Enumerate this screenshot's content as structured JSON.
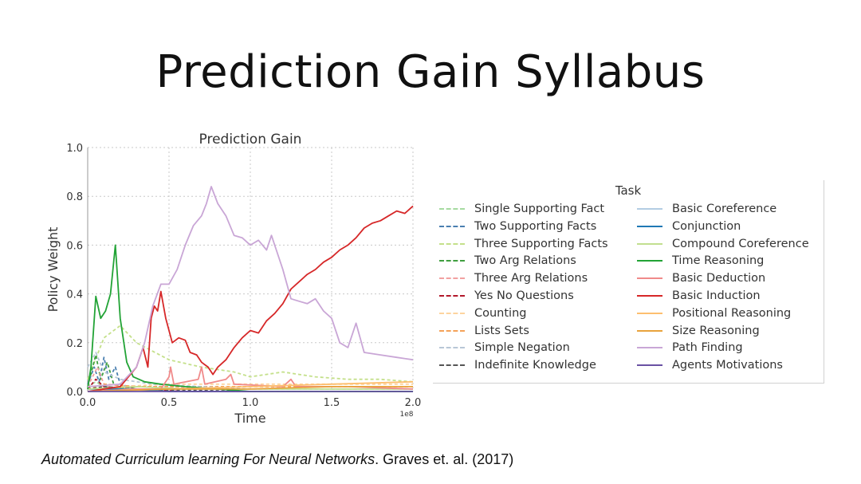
{
  "slide": {
    "title": "Prediction Gain Syllabus",
    "citation_title": "Automated Curriculum learning For Neural Networks",
    "citation_rest": ". Graves et. al. (2017)"
  },
  "chart_data": {
    "type": "line",
    "title": "Prediction Gain",
    "xlabel": "Time",
    "ylabel": "Policy Weight",
    "x_scale_label": "1e8",
    "xlim": [
      0,
      2.0
    ],
    "ylim": [
      0,
      1.0
    ],
    "xticks": [
      "0.0",
      "0.5",
      "1.0",
      "1.5",
      "2.0"
    ],
    "yticks": [
      "0.0",
      "0.2",
      "0.4",
      "0.6",
      "0.8",
      "1.0"
    ],
    "grid": true,
    "legend_title": "Task",
    "legend_placement": "right, outside",
    "series": [
      {
        "name": "Single Supporting Fact",
        "color": "#a6dba0",
        "dash": true,
        "points": [
          [
            0,
            0.02
          ],
          [
            0.05,
            0.04
          ],
          [
            0.1,
            0.02
          ],
          [
            0.2,
            0.01
          ],
          [
            0.4,
            0.01
          ],
          [
            0.6,
            0.01
          ],
          [
            1.0,
            0.01
          ],
          [
            1.5,
            0.01
          ],
          [
            2.0,
            0.01
          ]
        ]
      },
      {
        "name": "Two Supporting Facts",
        "color": "#4a7fb0",
        "dash": true,
        "points": [
          [
            0,
            0.03
          ],
          [
            0.04,
            0.1
          ],
          [
            0.07,
            0.04
          ],
          [
            0.1,
            0.14
          ],
          [
            0.13,
            0.05
          ],
          [
            0.17,
            0.1
          ],
          [
            0.2,
            0.03
          ],
          [
            0.3,
            0.01
          ],
          [
            0.5,
            0.0
          ],
          [
            1.0,
            0.0
          ],
          [
            2.0,
            0.0
          ]
        ]
      },
      {
        "name": "Three Supporting Facts",
        "color": "#c4e08a",
        "dash": true,
        "points": [
          [
            0,
            0.05
          ],
          [
            0.1,
            0.22
          ],
          [
            0.2,
            0.27
          ],
          [
            0.3,
            0.2
          ],
          [
            0.5,
            0.13
          ],
          [
            0.7,
            0.1
          ],
          [
            0.9,
            0.08
          ],
          [
            1.0,
            0.06
          ],
          [
            1.2,
            0.08
          ],
          [
            1.3,
            0.07
          ],
          [
            1.4,
            0.06
          ],
          [
            1.6,
            0.05
          ],
          [
            1.8,
            0.05
          ],
          [
            2.0,
            0.04
          ]
        ]
      },
      {
        "name": "Two Arg Relations",
        "color": "#3f9e3f",
        "dash": true,
        "points": [
          [
            0,
            0.02
          ],
          [
            0.05,
            0.15
          ],
          [
            0.08,
            0.05
          ],
          [
            0.12,
            0.12
          ],
          [
            0.16,
            0.03
          ],
          [
            0.3,
            0.01
          ],
          [
            0.6,
            0.0
          ],
          [
            1.0,
            0.0
          ],
          [
            2.0,
            0.0
          ]
        ]
      },
      {
        "name": "Three Arg Relations",
        "color": "#f2a1a1",
        "dash": true,
        "points": [
          [
            0,
            0.02
          ],
          [
            0.06,
            0.1
          ],
          [
            0.1,
            0.03
          ],
          [
            0.3,
            0.02
          ],
          [
            0.5,
            0.02
          ],
          [
            1.0,
            0.01
          ],
          [
            1.5,
            0.01
          ],
          [
            2.0,
            0.01
          ]
        ]
      },
      {
        "name": "Yes No Questions",
        "color": "#b2182b",
        "dash": true,
        "points": [
          [
            0,
            0.01
          ],
          [
            0.05,
            0.05
          ],
          [
            0.1,
            0.02
          ],
          [
            0.3,
            0.01
          ],
          [
            0.6,
            0.0
          ],
          [
            2.0,
            0.0
          ]
        ]
      },
      {
        "name": "Counting",
        "color": "#fdd49e",
        "dash": true,
        "points": [
          [
            0,
            0.01
          ],
          [
            0.2,
            0.02
          ],
          [
            0.5,
            0.03
          ],
          [
            1.0,
            0.03
          ],
          [
            1.5,
            0.03
          ],
          [
            2.0,
            0.03
          ]
        ]
      },
      {
        "name": "Lists Sets",
        "color": "#f4a259",
        "dash": true,
        "points": [
          [
            0,
            0.01
          ],
          [
            0.1,
            0.03
          ],
          [
            0.3,
            0.02
          ],
          [
            0.6,
            0.02
          ],
          [
            1.0,
            0.02
          ],
          [
            2.0,
            0.02
          ]
        ]
      },
      {
        "name": "Simple Negation",
        "color": "#b8c7d6",
        "dash": true,
        "points": [
          [
            0,
            0.1
          ],
          [
            0.05,
            0.16
          ],
          [
            0.1,
            0.08
          ],
          [
            0.2,
            0.05
          ],
          [
            0.4,
            0.03
          ],
          [
            0.7,
            0.02
          ],
          [
            1.0,
            0.01
          ],
          [
            2.0,
            0.01
          ]
        ]
      },
      {
        "name": "Indefinite Knowledge",
        "color": "#555555",
        "dash": true,
        "points": [
          [
            0,
            0.01
          ],
          [
            0.1,
            0.02
          ],
          [
            0.3,
            0.01
          ],
          [
            1.0,
            0.0
          ],
          [
            2.0,
            0.0
          ]
        ]
      },
      {
        "name": "Basic Coreference",
        "color": "#b3cde3",
        "dash": false,
        "points": [
          [
            0,
            0.01
          ],
          [
            0.5,
            0.01
          ],
          [
            1.0,
            0.01
          ],
          [
            2.0,
            0.01
          ]
        ]
      },
      {
        "name": "Conjunction",
        "color": "#1f78b4",
        "dash": false,
        "points": [
          [
            0,
            0.01
          ],
          [
            0.2,
            0.01
          ],
          [
            0.5,
            0.0
          ],
          [
            2.0,
            0.0
          ]
        ]
      },
      {
        "name": "Compound Coreference",
        "color": "#c2df8f",
        "dash": false,
        "points": [
          [
            0,
            0.01
          ],
          [
            0.3,
            0.02
          ],
          [
            0.6,
            0.01
          ],
          [
            1.0,
            0.01
          ],
          [
            2.0,
            0.01
          ]
        ]
      },
      {
        "name": "Time Reasoning",
        "color": "#22a336",
        "dash": false,
        "points": [
          [
            0,
            0.01
          ],
          [
            0.02,
            0.1
          ],
          [
            0.05,
            0.39
          ],
          [
            0.08,
            0.3
          ],
          [
            0.11,
            0.33
          ],
          [
            0.14,
            0.4
          ],
          [
            0.17,
            0.6
          ],
          [
            0.2,
            0.3
          ],
          [
            0.24,
            0.12
          ],
          [
            0.28,
            0.06
          ],
          [
            0.35,
            0.04
          ],
          [
            0.45,
            0.03
          ],
          [
            0.6,
            0.02
          ],
          [
            0.8,
            0.01
          ],
          [
            1.0,
            0.0
          ],
          [
            2.0,
            0.0
          ]
        ]
      },
      {
        "name": "Basic Deduction",
        "color": "#f08a8a",
        "dash": false,
        "points": [
          [
            0,
            0.0
          ],
          [
            0.3,
            0.01
          ],
          [
            0.45,
            0.01
          ],
          [
            0.5,
            0.06
          ],
          [
            0.51,
            0.1
          ],
          [
            0.53,
            0.03
          ],
          [
            0.68,
            0.05
          ],
          [
            0.7,
            0.1
          ],
          [
            0.72,
            0.03
          ],
          [
            0.85,
            0.05
          ],
          [
            0.88,
            0.07
          ],
          [
            0.9,
            0.03
          ],
          [
            1.2,
            0.02
          ],
          [
            1.25,
            0.05
          ],
          [
            1.28,
            0.02
          ],
          [
            1.6,
            0.02
          ],
          [
            2.0,
            0.01
          ]
        ]
      },
      {
        "name": "Basic Induction",
        "color": "#d62728",
        "dash": false,
        "points": [
          [
            0,
            0.0
          ],
          [
            0.2,
            0.02
          ],
          [
            0.3,
            0.1
          ],
          [
            0.34,
            0.18
          ],
          [
            0.37,
            0.1
          ],
          [
            0.39,
            0.3
          ],
          [
            0.41,
            0.35
          ],
          [
            0.43,
            0.33
          ],
          [
            0.45,
            0.41
          ],
          [
            0.48,
            0.3
          ],
          [
            0.52,
            0.2
          ],
          [
            0.56,
            0.22
          ],
          [
            0.6,
            0.21
          ],
          [
            0.63,
            0.16
          ],
          [
            0.67,
            0.15
          ],
          [
            0.7,
            0.12
          ],
          [
            0.74,
            0.1
          ],
          [
            0.77,
            0.07
          ],
          [
            0.8,
            0.1
          ],
          [
            0.85,
            0.13
          ],
          [
            0.9,
            0.18
          ],
          [
            0.95,
            0.22
          ],
          [
            1.0,
            0.25
          ],
          [
            1.05,
            0.24
          ],
          [
            1.1,
            0.29
          ],
          [
            1.15,
            0.32
          ],
          [
            1.2,
            0.36
          ],
          [
            1.25,
            0.42
          ],
          [
            1.3,
            0.45
          ],
          [
            1.35,
            0.48
          ],
          [
            1.4,
            0.5
          ],
          [
            1.45,
            0.53
          ],
          [
            1.5,
            0.55
          ],
          [
            1.55,
            0.58
          ],
          [
            1.6,
            0.6
          ],
          [
            1.65,
            0.63
          ],
          [
            1.7,
            0.67
          ],
          [
            1.75,
            0.69
          ],
          [
            1.8,
            0.7
          ],
          [
            1.85,
            0.72
          ],
          [
            1.9,
            0.74
          ],
          [
            1.95,
            0.73
          ],
          [
            2.0,
            0.76
          ]
        ]
      },
      {
        "name": "Positional Reasoning",
        "color": "#fdbf6f",
        "dash": false,
        "points": [
          [
            0,
            0.0
          ],
          [
            0.5,
            0.01
          ],
          [
            1.0,
            0.02
          ],
          [
            1.5,
            0.03
          ],
          [
            2.0,
            0.04
          ]
        ]
      },
      {
        "name": "Size Reasoning",
        "color": "#e8a33c",
        "dash": false,
        "points": [
          [
            0,
            0.0
          ],
          [
            0.5,
            0.01
          ],
          [
            1.0,
            0.01
          ],
          [
            1.5,
            0.02
          ],
          [
            2.0,
            0.02
          ]
        ]
      },
      {
        "name": "Path Finding",
        "color": "#c9a6d6",
        "dash": false,
        "points": [
          [
            0,
            0.02
          ],
          [
            0.2,
            0.03
          ],
          [
            0.3,
            0.1
          ],
          [
            0.35,
            0.2
          ],
          [
            0.4,
            0.35
          ],
          [
            0.45,
            0.44
          ],
          [
            0.5,
            0.44
          ],
          [
            0.55,
            0.5
          ],
          [
            0.6,
            0.6
          ],
          [
            0.65,
            0.68
          ],
          [
            0.7,
            0.72
          ],
          [
            0.73,
            0.77
          ],
          [
            0.76,
            0.84
          ],
          [
            0.8,
            0.77
          ],
          [
            0.85,
            0.72
          ],
          [
            0.9,
            0.64
          ],
          [
            0.95,
            0.63
          ],
          [
            1.0,
            0.6
          ],
          [
            1.05,
            0.62
          ],
          [
            1.1,
            0.58
          ],
          [
            1.13,
            0.64
          ],
          [
            1.16,
            0.58
          ],
          [
            1.2,
            0.5
          ],
          [
            1.25,
            0.38
          ],
          [
            1.3,
            0.37
          ],
          [
            1.35,
            0.36
          ],
          [
            1.4,
            0.38
          ],
          [
            1.45,
            0.33
          ],
          [
            1.5,
            0.3
          ],
          [
            1.55,
            0.2
          ],
          [
            1.6,
            0.18
          ],
          [
            1.65,
            0.28
          ],
          [
            1.7,
            0.16
          ],
          [
            1.8,
            0.15
          ],
          [
            1.9,
            0.14
          ],
          [
            2.0,
            0.13
          ]
        ]
      },
      {
        "name": "Agents Motivations",
        "color": "#6a51a3",
        "dash": false,
        "points": [
          [
            0,
            0.0
          ],
          [
            0.5,
            0.0
          ],
          [
            1.0,
            0.0
          ],
          [
            2.0,
            0.0
          ]
        ]
      }
    ]
  }
}
